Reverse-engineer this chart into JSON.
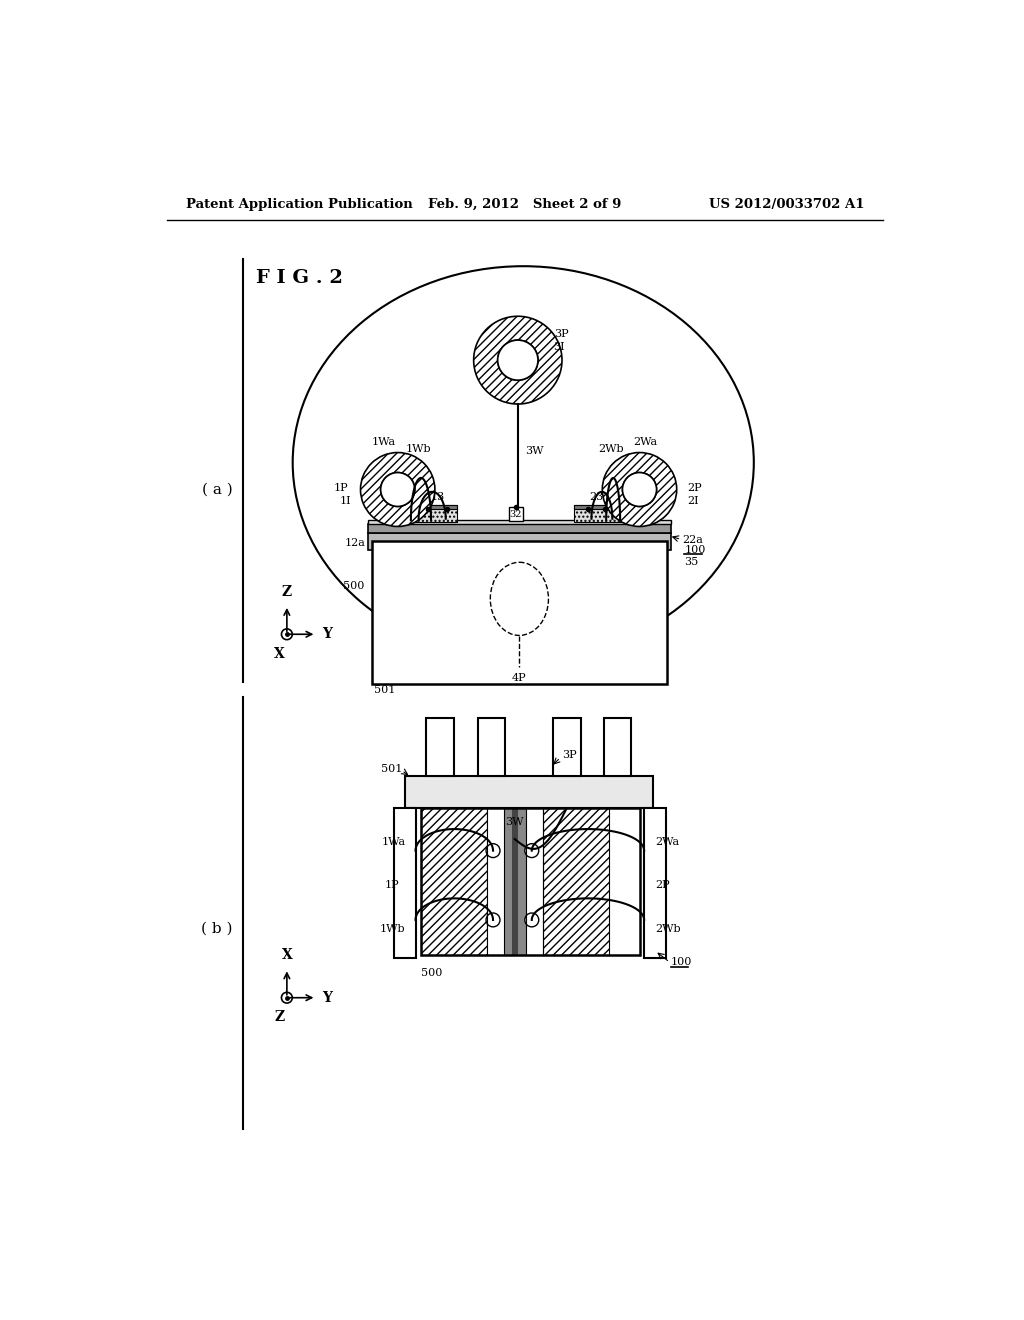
{
  "bg_color": "#ffffff",
  "page_title_left": "Patent Application Publication",
  "page_title_center": "Feb. 9, 2012   Sheet 2 of 9",
  "page_title_right": "US 2012/0033702 A1",
  "fig_label": "F I G . 2",
  "sub_a_label": "( a )",
  "sub_b_label": "( b )"
}
